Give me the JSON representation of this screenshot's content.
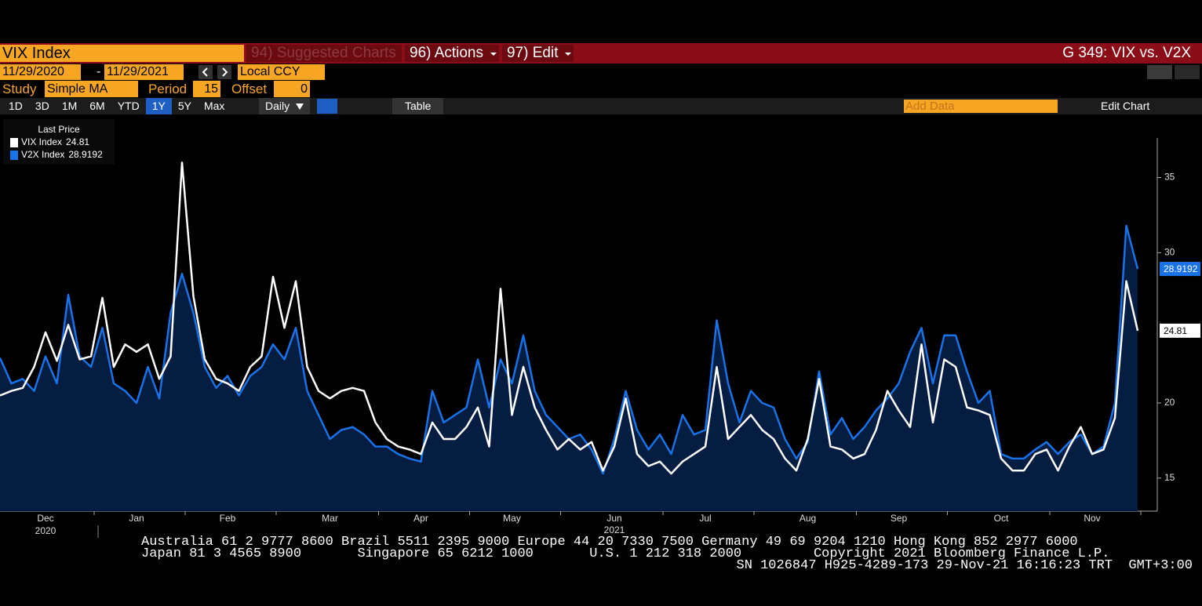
{
  "header": {
    "security": "VIX Index",
    "suggested": "94) Suggested Charts",
    "actions": "96) Actions",
    "edit": "97) Edit",
    "page_title": "G 349: VIX vs. V2X"
  },
  "range": {
    "start": "11/29/2020",
    "separator": "-",
    "end": "11/29/2021",
    "currency": "Local CCY"
  },
  "study": {
    "label": "Study",
    "value": "Simple MA",
    "period_label": "Period",
    "period": "15",
    "offset_label": "Offset",
    "offset": "0"
  },
  "toolbar": {
    "periods": [
      "1D",
      "3D",
      "1M",
      "6M",
      "YTD",
      "1Y",
      "5Y",
      "Max"
    ],
    "active_index": 5,
    "frequency": "Daily",
    "table": "Table",
    "add_data": "Add Data",
    "edit_chart": "Edit Chart"
  },
  "footer": {
    "lines": [
      "Australia 61 2 9777 8600 Brazil 5511 2395 9000 Europe 44 20 7330 7500 Germany 49 69 9204 1210 Hong Kong 852 2977 6000",
      "Japan 81 3 4565 8900       Singapore 65 6212 1000       U.S. 1 212 318 2000         Copyright 2021 Bloomberg Finance L.P.",
      "SN 1026847 H925-4289-173 29-Nov-21 16:16:23 TRT  GMT+3:00"
    ]
  },
  "chart_data": {
    "type": "line",
    "legend_title": "Last Price",
    "legend": "top-left",
    "area_color": "#061d42",
    "categories": [
      null,
      null,
      null,
      null,
      "Dec",
      null,
      null,
      null,
      null,
      null,
      null,
      null,
      "Jan",
      null,
      null,
      null,
      null,
      null,
      null,
      null,
      "Feb",
      null,
      null,
      null,
      null,
      null,
      null,
      null,
      null,
      "Mar",
      null,
      null,
      null,
      null,
      null,
      null,
      null,
      "Apr",
      null,
      null,
      null,
      null,
      null,
      null,
      null,
      "May",
      null,
      null,
      null,
      null,
      null,
      null,
      null,
      null,
      "Jun",
      null,
      null,
      null,
      null,
      null,
      null,
      null,
      "Jul",
      null,
      null,
      null,
      null,
      null,
      null,
      null,
      null,
      "Aug",
      null,
      null,
      null,
      null,
      null,
      null,
      null,
      "Sep",
      null,
      null,
      null,
      null,
      null,
      null,
      null,
      null,
      "Oct",
      null,
      null,
      null,
      null,
      null,
      null,
      null,
      "Nov",
      null,
      null,
      null,
      null
    ],
    "year_labels": [
      "2020",
      "2021"
    ],
    "series": [
      {
        "name": "VIX Index",
        "color": "#ffffff",
        "values": [
          20.5,
          20.8,
          21.0,
          22.4,
          24.7,
          22.8,
          25.2,
          22.9,
          23.1,
          27.0,
          22.4,
          23.9,
          23.4,
          23.9,
          21.6,
          23.1,
          36.0,
          27.1,
          22.9,
          21.6,
          21.3,
          20.8,
          22.4,
          23.1,
          28.4,
          25.0,
          28.1,
          22.4,
          20.8,
          20.3,
          20.8,
          21.0,
          20.8,
          18.7,
          17.6,
          17.1,
          16.9,
          16.6,
          18.7,
          17.6,
          17.6,
          18.4,
          19.7,
          17.1,
          27.6,
          19.2,
          22.4,
          19.7,
          18.2,
          16.9,
          17.6,
          16.9,
          17.4,
          15.5,
          17.1,
          20.3,
          16.6,
          15.8,
          16.1,
          15.3,
          16.1,
          16.6,
          17.1,
          22.4,
          17.6,
          18.4,
          19.2,
          18.2,
          17.6,
          16.3,
          15.5,
          17.6,
          21.6,
          17.1,
          16.9,
          16.3,
          16.6,
          18.2,
          20.8,
          19.5,
          18.4,
          23.9,
          18.7,
          22.9,
          22.4,
          19.7,
          19.5,
          19.2,
          16.3,
          15.5,
          15.5,
          16.6,
          16.9,
          15.5,
          17.1,
          18.4,
          16.6,
          16.9,
          19.0,
          28.1,
          24.81
        ]
      },
      {
        "name": "V2X Index",
        "color": "#1a72e8",
        "values": [
          23.0,
          21.3,
          21.6,
          20.8,
          23.1,
          21.3,
          27.2,
          23.1,
          22.4,
          25.0,
          21.3,
          20.8,
          20.0,
          22.4,
          20.3,
          26.0,
          28.6,
          26.0,
          22.4,
          21.0,
          21.8,
          20.5,
          21.8,
          22.4,
          23.9,
          22.9,
          25.0,
          20.8,
          19.2,
          17.6,
          18.2,
          18.4,
          17.9,
          17.1,
          17.1,
          16.6,
          16.3,
          16.1,
          20.8,
          18.7,
          19.2,
          19.7,
          22.9,
          19.7,
          22.9,
          21.3,
          24.5,
          20.8,
          19.2,
          18.4,
          17.6,
          17.9,
          16.9,
          15.3,
          17.6,
          20.8,
          18.2,
          16.9,
          17.9,
          16.6,
          19.2,
          17.9,
          18.2,
          25.5,
          21.3,
          18.7,
          20.8,
          20.0,
          19.7,
          17.6,
          16.3,
          17.4,
          22.1,
          17.9,
          19.0,
          17.6,
          18.4,
          19.5,
          20.3,
          21.3,
          23.4,
          25.0,
          21.3,
          24.5,
          24.5,
          22.1,
          20.0,
          20.8,
          16.6,
          16.3,
          16.3,
          16.9,
          17.4,
          16.6,
          17.4,
          17.9,
          16.6,
          17.1,
          20.0,
          31.8,
          28.9192
        ]
      }
    ],
    "ylim": [
      12.8,
      39.2
    ],
    "yticks": [
      15,
      20,
      30,
      35
    ]
  }
}
